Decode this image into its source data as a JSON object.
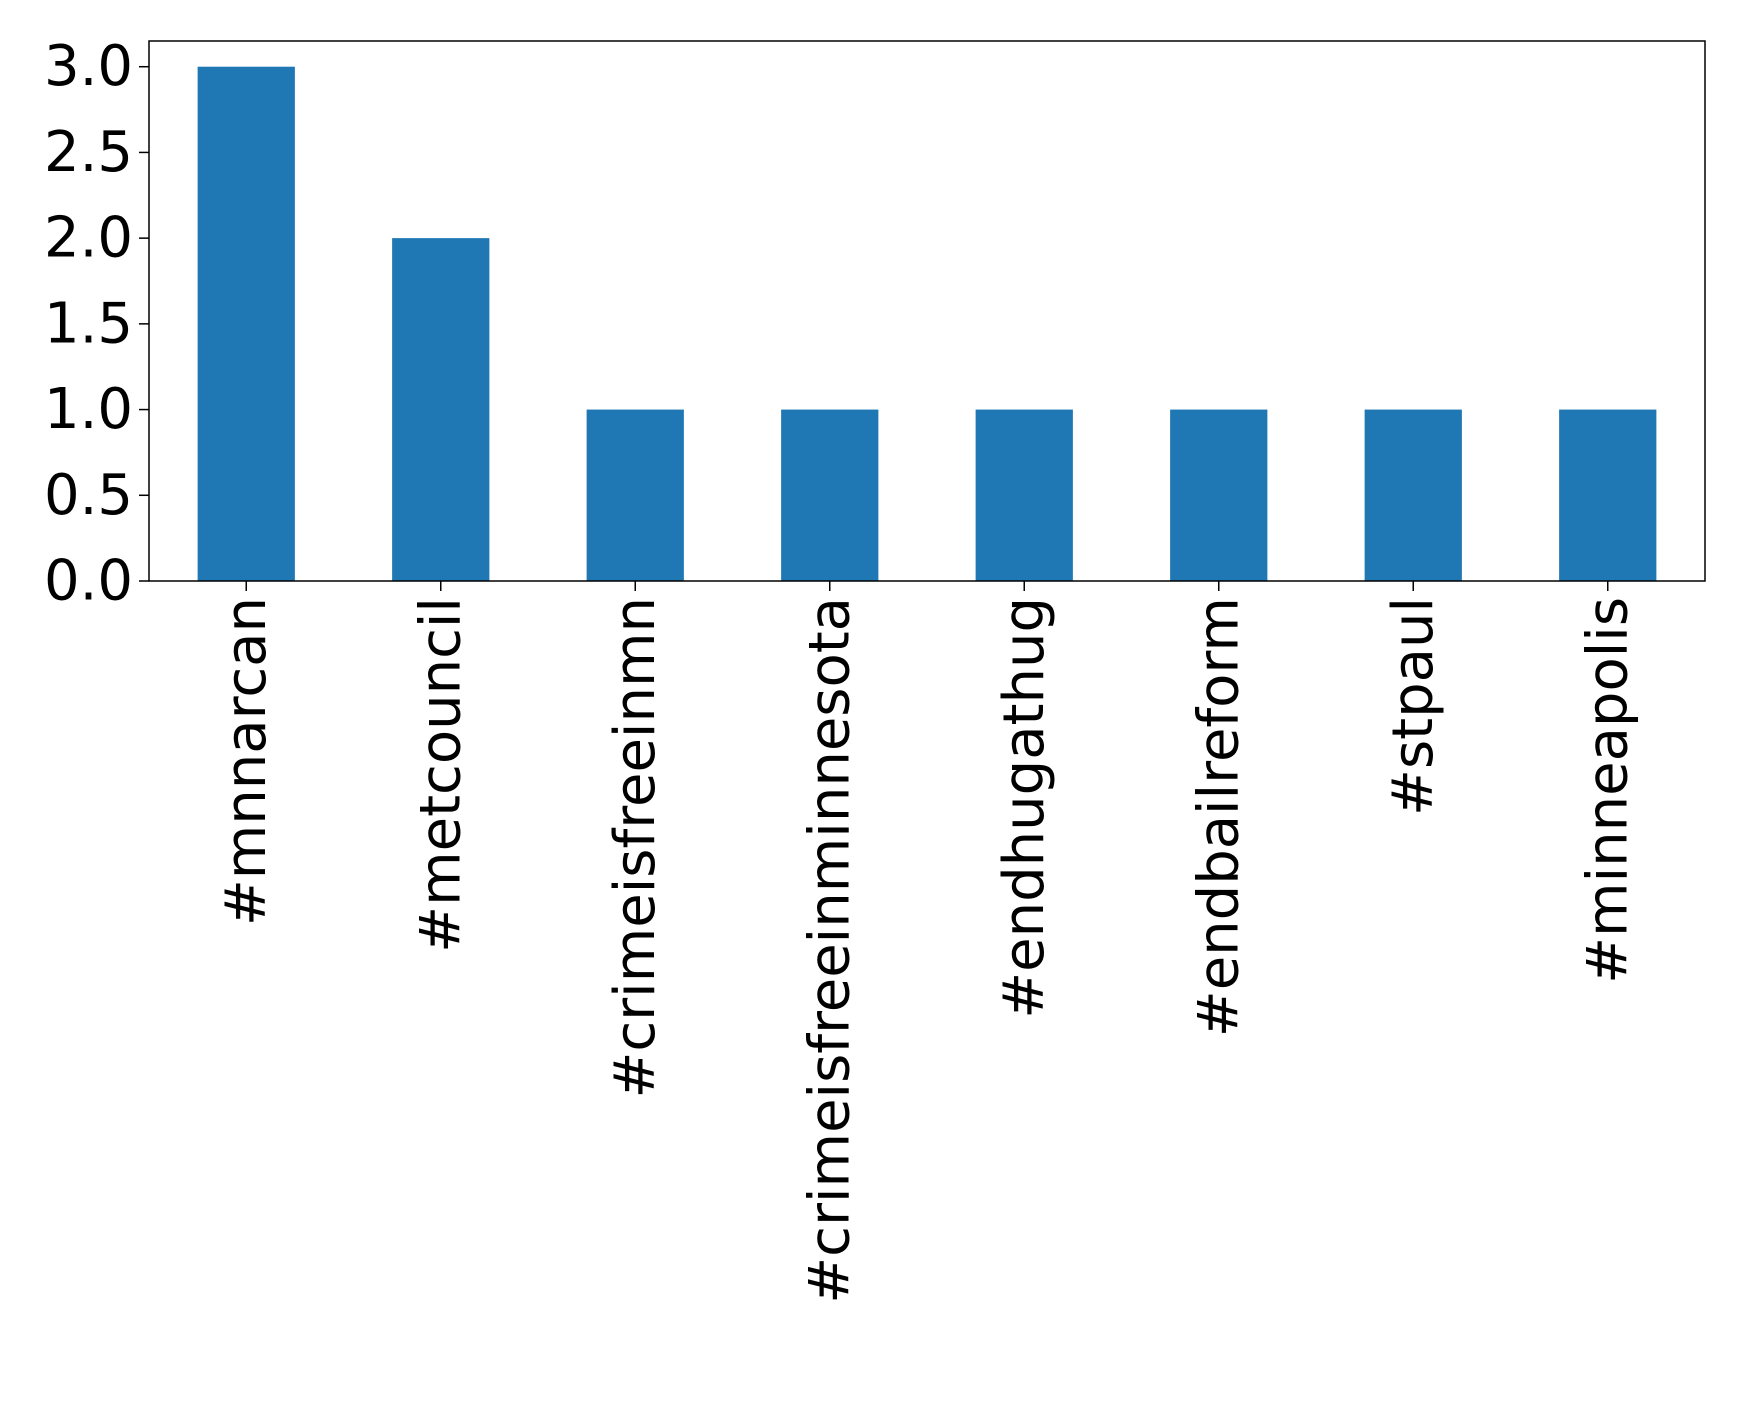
{
  "chart_data": {
    "type": "bar",
    "title": "",
    "xlabel": "",
    "ylabel": "",
    "categories": [
      "#mnnarcan",
      "#metcouncil",
      "#crimeisfreeinmn",
      "#crimeisfreeinminnesota",
      "#endhugathug",
      "#endbailreform",
      "#stpaul",
      "#minneapolis"
    ],
    "values": [
      3,
      2,
      1,
      1,
      1,
      1,
      1,
      1
    ],
    "ylim": [
      0,
      3.15
    ],
    "yticks": [
      "0.0",
      "0.5",
      "1.0",
      "1.5",
      "2.0",
      "2.5",
      "3.0"
    ],
    "grid": false,
    "legend": "none",
    "bar_color": "#1f77b4"
  }
}
